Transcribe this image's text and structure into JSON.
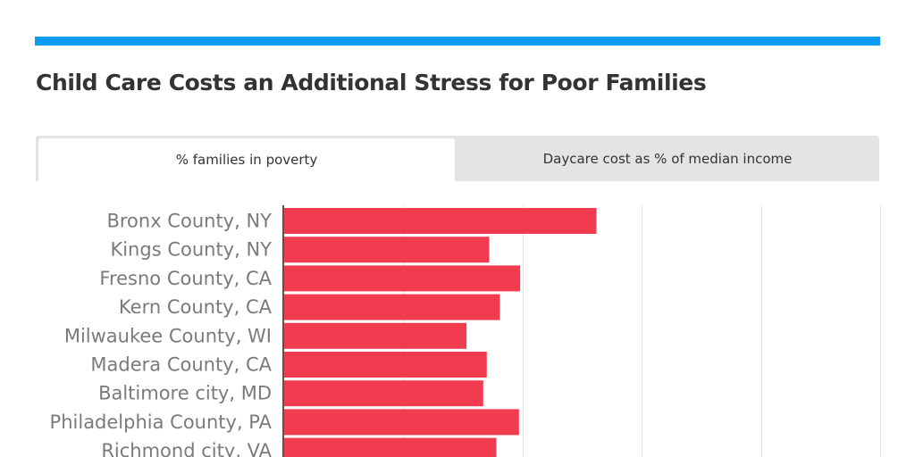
{
  "colors": {
    "accent": "#0a9bf5",
    "bar": "#f03c4e",
    "grid": "#e6e6e6",
    "axis": "#555555"
  },
  "title": "Child Care Costs an Additional Stress for Poor Families",
  "tabs": [
    {
      "label": "% families in poverty",
      "active": true
    },
    {
      "label": "Daycare cost as % of median income",
      "active": false
    }
  ],
  "chart_data": {
    "type": "bar",
    "orientation": "horizontal",
    "title": "",
    "xlabel": "",
    "ylabel": "",
    "xlim": [
      0,
      50
    ],
    "grid": true,
    "categories": [
      "Bronx County, NY",
      "Kings County, NY",
      "Fresno County, CA",
      "Kern County, CA",
      "Milwaukee County, WI",
      "Madera County, CA",
      "Baltimore city, MD",
      "Philadelphia County, PA",
      "Richmond city, VA"
    ],
    "values": [
      26.2,
      17.2,
      19.8,
      18.1,
      15.3,
      17.0,
      16.7,
      19.7,
      17.8
    ]
  }
}
